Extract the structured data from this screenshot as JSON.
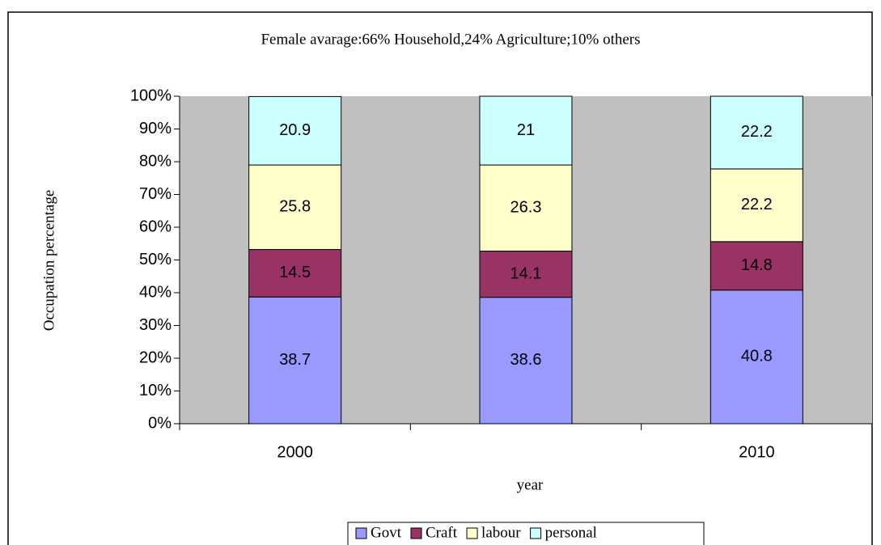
{
  "chart_data": {
    "type": "stacked_bar",
    "title": "Female avarage:66%  Household,24% Agriculture;10% others",
    "x_label": "year",
    "y_label": "Occupation percentage",
    "categories": [
      "2000",
      null,
      "2010"
    ],
    "series": [
      {
        "name": "Govt",
        "color": "#9999ff",
        "values": [
          38.7,
          38.6,
          40.8
        ]
      },
      {
        "name": "Craft",
        "color": "#993366",
        "values": [
          14.5,
          14.1,
          14.8
        ]
      },
      {
        "name": "labour",
        "color": "#ffffcc",
        "values": [
          25.8,
          26.3,
          22.2
        ]
      },
      {
        "name": "personal",
        "color": "#ccffff",
        "values": [
          20.9,
          21,
          22.2
        ]
      }
    ],
    "ylim": [
      0,
      100
    ],
    "yticks": [
      {
        "value": 0,
        "label": "0%"
      },
      {
        "value": 10,
        "label": "10%"
      },
      {
        "value": 20,
        "label": "20%"
      },
      {
        "value": 30,
        "label": "30%"
      },
      {
        "value": 40,
        "label": "40%"
      },
      {
        "value": 50,
        "label": "50%"
      },
      {
        "value": 60,
        "label": "60%"
      },
      {
        "value": 70,
        "label": "70%"
      },
      {
        "value": 80,
        "label": "80%"
      },
      {
        "value": 90,
        "label": "90%"
      },
      {
        "value": 100,
        "label": "100%"
      }
    ],
    "plot_background": "#c0c0c0",
    "legend": "bottom"
  }
}
